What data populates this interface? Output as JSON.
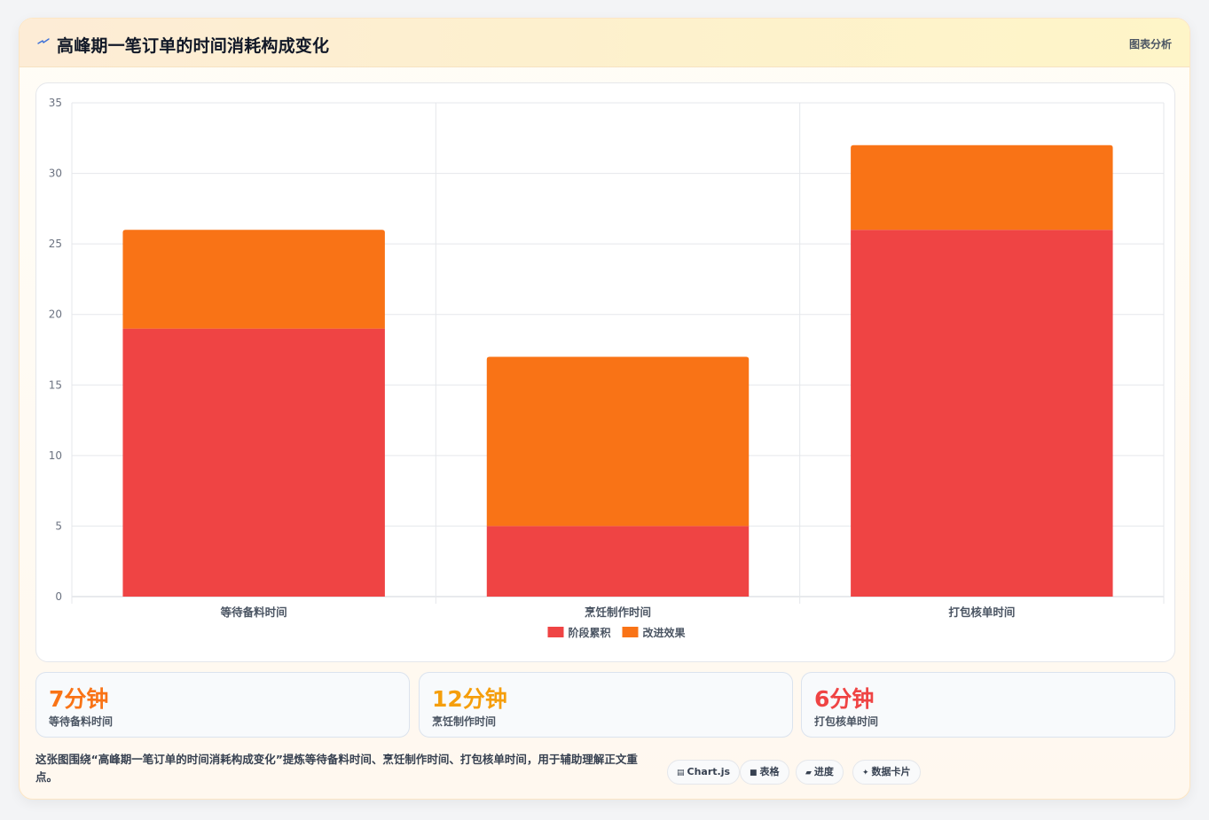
{
  "header": {
    "title": "高峰期一笔订单的时间消耗构成变化",
    "tag": "图表分析",
    "icon": "lightning-icon"
  },
  "chart_data": {
    "type": "bar",
    "stacked": true,
    "categories": [
      "等待备料时间",
      "烹饪制作时间",
      "打包核单时间"
    ],
    "series": [
      {
        "name": "阶段累积",
        "color": "#ef4444",
        "values": [
          19,
          5,
          26
        ]
      },
      {
        "name": "改进效果",
        "color": "#f97316",
        "values": [
          7,
          12,
          6
        ]
      }
    ],
    "ylim": [
      0,
      35
    ],
    "yticks": [
      0,
      5,
      10,
      15,
      20,
      25,
      30,
      35
    ],
    "grid": true,
    "legend": "bottom",
    "title": "",
    "xlabel": "",
    "ylabel": ""
  },
  "stats": [
    {
      "value": "7分钟",
      "label": "等待备料时间",
      "color": "#f97316"
    },
    {
      "value": "12分钟",
      "label": "烹饪制作时间",
      "color": "#f59e0b"
    },
    {
      "value": "6分钟",
      "label": "打包核单时间",
      "color": "#ef4444"
    }
  ],
  "footer": {
    "text": "这张图围绕“高峰期一笔订单的时间消耗构成变化”提炼等待备料时间、烹饪制作时间、打包核单时间，用于辅助理解正文重点。"
  },
  "chips": [
    {
      "icon": "▤",
      "label": "Chart.js",
      "name": "chip-chartjs"
    },
    {
      "icon": "■",
      "label": "表格",
      "name": "chip-table"
    },
    {
      "icon": "▰",
      "label": "进度",
      "name": "chip-progress"
    },
    {
      "icon": "✦",
      "label": "数据卡片",
      "name": "chip-data-card"
    }
  ]
}
